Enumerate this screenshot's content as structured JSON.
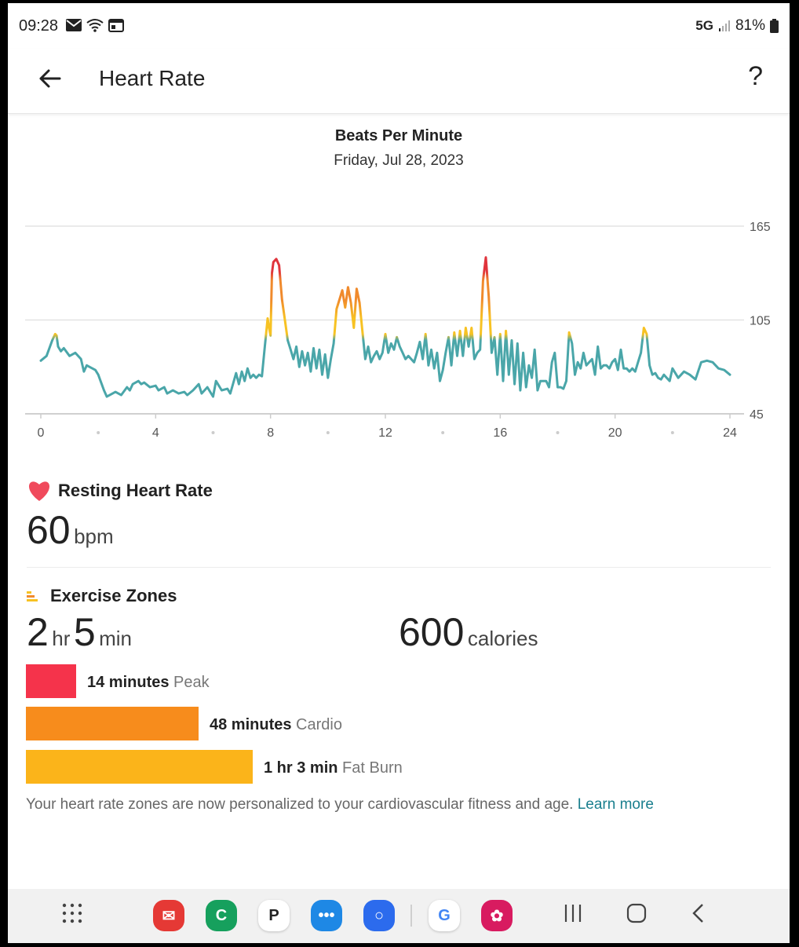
{
  "status": {
    "time": "09:28",
    "network": "5G",
    "battery": "81%",
    "icons": [
      "mail-icon",
      "wifi-icon",
      "calendar-icon",
      "signal-icon",
      "battery-icon"
    ]
  },
  "appbar": {
    "title": "Heart Rate",
    "help": "?"
  },
  "chart": {
    "title": "Beats Per Minute",
    "subtitle": "Friday, Jul 28, 2023"
  },
  "chart_data": {
    "type": "line",
    "title": "Beats Per Minute",
    "subtitle": "Friday, Jul 28, 2023",
    "xlabel": "",
    "ylabel": "",
    "xlim": [
      0,
      24
    ],
    "ylim": [
      45,
      165
    ],
    "xticks": [
      "0",
      "4",
      "8",
      "12",
      "16",
      "20",
      "24"
    ],
    "yticks": [
      "45",
      "105",
      "165"
    ],
    "grid": true,
    "zone_colors": {
      "normal": "#4aa6a9",
      "fat_burn": "#f7c223",
      "cardio": "#f08a2c",
      "peak": "#e0343c"
    },
    "series": [
      {
        "x": [
          0,
          0.2,
          0.4,
          0.5,
          0.55,
          0.6,
          0.7,
          0.8,
          1.0,
          1.2,
          1.4,
          1.5,
          1.6,
          1.7,
          1.9,
          2.0,
          2.2,
          2.3,
          2.4,
          2.5,
          2.6,
          2.8,
          3.0,
          3.1,
          3.2,
          3.4,
          3.5,
          3.6,
          3.8,
          4.0,
          4.1,
          4.3,
          4.4,
          4.6,
          4.8,
          5.0,
          5.1,
          5.3,
          5.5,
          5.6,
          5.8,
          6.0,
          6.1,
          6.3,
          6.5,
          6.6,
          6.8,
          6.9,
          7.0,
          7.1,
          7.2,
          7.3,
          7.4,
          7.5,
          7.6,
          7.7,
          7.8,
          7.9,
          7.95,
          8.0,
          8.05,
          8.1,
          8.2,
          8.3,
          8.4,
          8.5,
          8.6,
          8.7,
          8.8,
          8.9,
          9.0,
          9.1,
          9.2,
          9.3,
          9.4,
          9.5,
          9.6,
          9.7,
          9.8,
          9.9,
          10.0,
          10.1,
          10.2,
          10.3,
          10.4,
          10.5,
          10.6,
          10.7,
          10.8,
          10.9,
          11.0,
          11.1,
          11.2,
          11.3,
          11.4,
          11.5,
          11.6,
          11.7,
          11.8,
          11.9,
          12.0,
          12.1,
          12.2,
          12.3,
          12.4,
          12.5,
          12.6,
          12.7,
          12.8,
          12.9,
          13.0,
          13.1,
          13.2,
          13.3,
          13.4,
          13.5,
          13.6,
          13.7,
          13.8,
          13.9,
          14.0,
          14.1,
          14.2,
          14.3,
          14.4,
          14.5,
          14.6,
          14.7,
          14.8,
          14.9,
          15.0,
          15.1,
          15.2,
          15.3,
          15.4,
          15.5,
          15.6,
          15.7,
          15.8,
          15.9,
          16.0,
          16.1,
          16.2,
          16.3,
          16.4,
          16.5,
          16.6,
          16.7,
          16.8,
          16.9,
          17.0,
          17.1,
          17.2,
          17.3,
          17.4,
          17.5,
          17.6,
          17.7,
          17.8,
          17.9,
          18.0,
          18.1,
          18.2,
          18.3,
          18.4,
          18.5,
          18.6,
          18.7,
          18.8,
          18.9,
          19.0,
          19.1,
          19.2,
          19.3,
          19.4,
          19.5,
          19.6,
          19.7,
          19.8,
          19.9,
          20.0,
          20.1,
          20.2,
          20.3,
          20.4,
          20.5,
          20.6,
          20.7,
          20.8,
          20.9,
          21.0,
          21.1,
          21.2,
          21.3,
          21.4,
          21.5,
          21.6,
          21.7,
          21.8,
          21.9,
          22.0,
          22.2,
          22.4,
          22.6,
          22.8,
          23.0,
          23.2,
          23.4,
          23.6,
          23.8,
          24.0
        ],
        "y": [
          79,
          82,
          92,
          96,
          95,
          88,
          85,
          87,
          82,
          84,
          80,
          72,
          76,
          75,
          73,
          70,
          60,
          56,
          57,
          58,
          59,
          57,
          62,
          60,
          64,
          66,
          64,
          65,
          62,
          63,
          60,
          62,
          58,
          60,
          58,
          59,
          57,
          60,
          64,
          58,
          62,
          56,
          66,
          60,
          61,
          58,
          71,
          64,
          72,
          66,
          74,
          68,
          70,
          68,
          70,
          69,
          88,
          106,
          100,
          95,
          135,
          142,
          144,
          140,
          118,
          105,
          92,
          86,
          80,
          88,
          75,
          85,
          76,
          84,
          72,
          87,
          74,
          86,
          70,
          83,
          68,
          80,
          90,
          112,
          118,
          124,
          113,
          126,
          116,
          100,
          125,
          116,
          98,
          80,
          88,
          78,
          82,
          85,
          80,
          84,
          96,
          84,
          90,
          86,
          94,
          88,
          84,
          80,
          82,
          80,
          78,
          84,
          91,
          80,
          96,
          76,
          86,
          74,
          84,
          66,
          73,
          84,
          94,
          76,
          97,
          82,
          98,
          82,
          100,
          88,
          100,
          80,
          84,
          86,
          130,
          145,
          120,
          84,
          94,
          70,
          96,
          66,
          98,
          70,
          92,
          64,
          90,
          60,
          84,
          62,
          76,
          68,
          86,
          60,
          66,
          66,
          66,
          62,
          78,
          84,
          62,
          62,
          61,
          66,
          97,
          90,
          70,
          78,
          74,
          84,
          76,
          78,
          80,
          70,
          88,
          74,
          76,
          76,
          74,
          78,
          80,
          73,
          86,
          74,
          74,
          72,
          74,
          72,
          78,
          84,
          100,
          96,
          76,
          70,
          71,
          68,
          67,
          70,
          68,
          66,
          74,
          68,
          72,
          70,
          67,
          78,
          79,
          78,
          74,
          73,
          70
        ]
      }
    ]
  },
  "resting": {
    "label": "Resting Heart Rate",
    "value": "60",
    "unit": "bpm"
  },
  "zones": {
    "label": "Exercise Zones",
    "hours": "2",
    "hr_unit": "hr",
    "minutes": "5",
    "min_unit": "min",
    "calories": "600",
    "cal_unit": "calories",
    "items": [
      {
        "amount": "14 minutes",
        "name": "Peak",
        "color": "#f5334b",
        "fraction": 0.111
      },
      {
        "amount": "48 minutes",
        "name": "Cardio",
        "color": "#f78c1c",
        "fraction": 0.381
      },
      {
        "amount": "1 hr 3 min",
        "name": "Fat Burn",
        "color": "#fbb41a",
        "fraction": 0.5
      }
    ]
  },
  "note": {
    "text": "Your heart rate zones are now personalized to your cardiovascular fitness and age.",
    "link": "Learn more"
  },
  "dock": {
    "apps": [
      {
        "name": "gmail-app-icon",
        "color": "#e53935",
        "glyph": "✉"
      },
      {
        "name": "phone-app-icon",
        "color": "#16a05d",
        "glyph": "C"
      },
      {
        "name": "p-app-icon",
        "color": "#ffffff",
        "glyph": "P"
      },
      {
        "name": "messages-app-icon",
        "color": "#1e88e5",
        "glyph": "•••"
      },
      {
        "name": "signal-app-icon",
        "color": "#2c6bed",
        "glyph": "○"
      },
      {
        "name": "google-app-icon",
        "color": "#ffffff",
        "glyph": "G"
      },
      {
        "name": "gallery-app-icon",
        "color": "#d81b60",
        "glyph": "✿"
      }
    ]
  }
}
